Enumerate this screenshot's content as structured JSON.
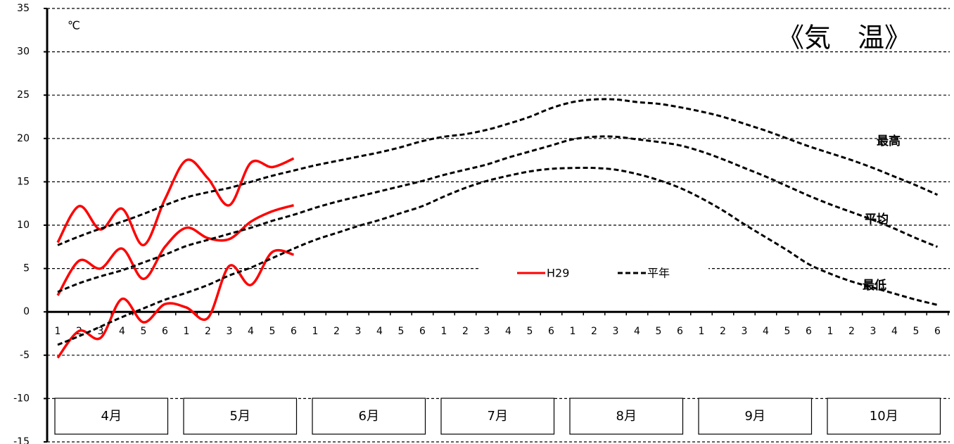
{
  "chart_data": {
    "type": "line",
    "title": "《気　温》",
    "unit": "℃",
    "categories": [
      "1",
      "2",
      "3",
      "4",
      "5",
      "6",
      "1",
      "2",
      "3",
      "4",
      "5",
      "6",
      "1",
      "2",
      "3",
      "4",
      "5",
      "6",
      "1",
      "2",
      "3",
      "4",
      "5",
      "6",
      "1",
      "2",
      "3",
      "4",
      "5",
      "6",
      "1",
      "2",
      "3",
      "4",
      "5",
      "6",
      "1",
      "2",
      "3",
      "4",
      "5",
      "6"
    ],
    "months": [
      "4月",
      "5月",
      "6月",
      "7月",
      "8月",
      "9月",
      "10月"
    ],
    "ylim": [
      -15,
      35
    ],
    "yticks": [
      -15,
      -10,
      -5,
      0,
      5,
      10,
      15,
      20,
      25,
      30,
      35
    ],
    "grid": true,
    "series": [
      {
        "name": "H29",
        "color": "#ff0000",
        "dashed": false,
        "lines": [
          [
            8,
            12.2,
            9.5,
            11.9,
            7.7,
            13,
            17.5,
            15.4,
            12.3,
            17.2,
            16.7,
            17.7,
            null,
            null,
            null,
            null,
            null,
            null,
            null,
            null,
            null,
            null,
            null,
            null,
            null,
            null,
            null,
            null,
            null,
            null,
            null,
            null,
            null,
            null,
            null,
            null,
            null,
            null,
            null,
            null,
            null,
            null
          ],
          [
            1.9,
            5.9,
            5,
            7.3,
            3.8,
            7.5,
            9.7,
            8.5,
            8.4,
            10.4,
            11.6,
            12.3,
            null,
            null,
            null,
            null,
            null,
            null,
            null,
            null,
            null,
            null,
            null,
            null,
            null,
            null,
            null,
            null,
            null,
            null,
            null,
            null,
            null,
            null,
            null,
            null,
            null,
            null,
            null,
            null,
            null,
            null
          ],
          [
            -5.3,
            -2.2,
            -3,
            1.5,
            -1.2,
            0.9,
            0.5,
            -0.7,
            5.3,
            3.1,
            6.9,
            6.6,
            null,
            null,
            null,
            null,
            null,
            null,
            null,
            null,
            null,
            null,
            null,
            null,
            null,
            null,
            null,
            null,
            null,
            null,
            null,
            null,
            null,
            null,
            null,
            null,
            null,
            null,
            null,
            null,
            null,
            null
          ]
        ]
      },
      {
        "name": "平年",
        "color": "#000000",
        "dashed": true,
        "lines": [
          [
            7.7,
            8.7,
            9.6,
            10.4,
            11.3,
            12.3,
            13.2,
            13.8,
            14.3,
            15,
            15.7,
            16.3,
            16.9,
            17.4,
            17.9,
            18.4,
            19,
            19.7,
            20.2,
            20.5,
            21,
            21.7,
            22.5,
            23.5,
            24.2,
            24.5,
            24.5,
            24.2,
            24,
            23.6,
            23.1,
            22.5,
            21.7,
            20.9,
            20,
            19.1,
            18.3,
            17.5,
            16.6,
            15.6,
            14.6,
            13.5
          ],
          [
            2.3,
            3.3,
            4.1,
            4.8,
            5.7,
            6.6,
            7.6,
            8.3,
            9,
            9.7,
            10.5,
            11.2,
            12,
            12.7,
            13.3,
            13.9,
            14.5,
            15.1,
            15.8,
            16.4,
            17,
            17.8,
            18.5,
            19.2,
            19.9,
            20.2,
            20.2,
            19.9,
            19.6,
            19.2,
            18.5,
            17.6,
            16.6,
            15.6,
            14.5,
            13.4,
            12.4,
            11.5,
            10.6,
            9.6,
            8.5,
            7.5
          ],
          [
            -3.8,
            -2.8,
            -1.7,
            -0.6,
            0.4,
            1.4,
            2.2,
            3.1,
            4.2,
            5.1,
            6.2,
            7.3,
            8.3,
            9.1,
            9.9,
            10.6,
            11.4,
            12.2,
            13.3,
            14.3,
            15.1,
            15.7,
            16.2,
            16.5,
            16.6,
            16.6,
            16.4,
            15.9,
            15.2,
            14.3,
            13.1,
            11.7,
            10.1,
            8.6,
            7.1,
            5.5,
            4.4,
            3.5,
            2.8,
            2.1,
            1.4,
            0.8
          ]
        ]
      }
    ],
    "annotations": [
      "最高",
      "平均",
      "最低"
    ]
  }
}
